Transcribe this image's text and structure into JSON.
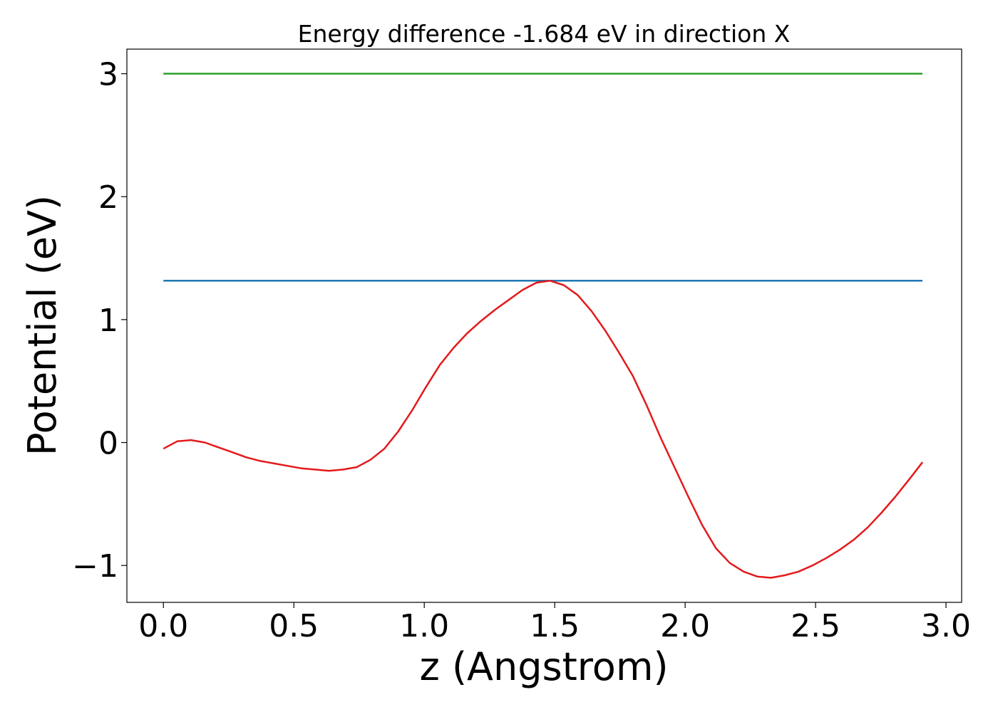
{
  "chart_data": {
    "type": "line",
    "title": "Energy difference -1.684 eV in direction X",
    "xlabel": "z (Angstrom)",
    "ylabel": "Potential (eV)",
    "xlim": [
      -0.14,
      3.06
    ],
    "ylim": [
      -1.3,
      3.2
    ],
    "xticks": [
      0.0,
      0.5,
      1.0,
      1.5,
      2.0,
      2.5,
      3.0
    ],
    "xtick_labels": [
      "0.0",
      "0.5",
      "1.0",
      "1.5",
      "2.0",
      "2.5",
      "3.0"
    ],
    "yticks": [
      -1,
      0,
      1,
      2,
      3
    ],
    "ytick_labels": [
      "−1",
      "0",
      "1",
      "2",
      "3"
    ],
    "grid": false,
    "series": [
      {
        "color": "#2ca02c",
        "x": [
          0.0,
          2.91
        ],
        "y": [
          3.0,
          3.0
        ]
      },
      {
        "color": "#1f77b4",
        "x": [
          0.0,
          2.91
        ],
        "y": [
          1.316,
          1.316
        ]
      },
      {
        "color": "#e41a1c",
        "x": [
          0.0,
          0.053,
          0.106,
          0.159,
          0.212,
          0.265,
          0.318,
          0.371,
          0.424,
          0.476,
          0.529,
          0.582,
          0.635,
          0.688,
          0.741,
          0.794,
          0.847,
          0.9,
          0.953,
          1.006,
          1.059,
          1.112,
          1.165,
          1.218,
          1.271,
          1.324,
          1.376,
          1.429,
          1.482,
          1.535,
          1.588,
          1.641,
          1.694,
          1.747,
          1.8,
          1.853,
          1.906,
          1.959,
          2.012,
          2.065,
          2.118,
          2.171,
          2.224,
          2.276,
          2.329,
          2.382,
          2.435,
          2.488,
          2.541,
          2.594,
          2.647,
          2.7,
          2.753,
          2.806,
          2.859,
          2.91
        ],
        "y": [
          -0.05,
          0.01,
          0.02,
          0.0,
          -0.04,
          -0.08,
          -0.12,
          -0.15,
          -0.17,
          -0.19,
          -0.21,
          -0.22,
          -0.23,
          -0.22,
          -0.2,
          -0.14,
          -0.05,
          0.09,
          0.26,
          0.45,
          0.63,
          0.77,
          0.89,
          0.99,
          1.08,
          1.16,
          1.24,
          1.3,
          1.316,
          1.28,
          1.2,
          1.07,
          0.91,
          0.73,
          0.54,
          0.3,
          0.04,
          -0.2,
          -0.44,
          -0.67,
          -0.86,
          -0.98,
          -1.05,
          -1.09,
          -1.1,
          -1.08,
          -1.05,
          -1.0,
          -0.94,
          -0.87,
          -0.79,
          -0.69,
          -0.57,
          -0.44,
          -0.3,
          -0.16
        ]
      }
    ]
  }
}
